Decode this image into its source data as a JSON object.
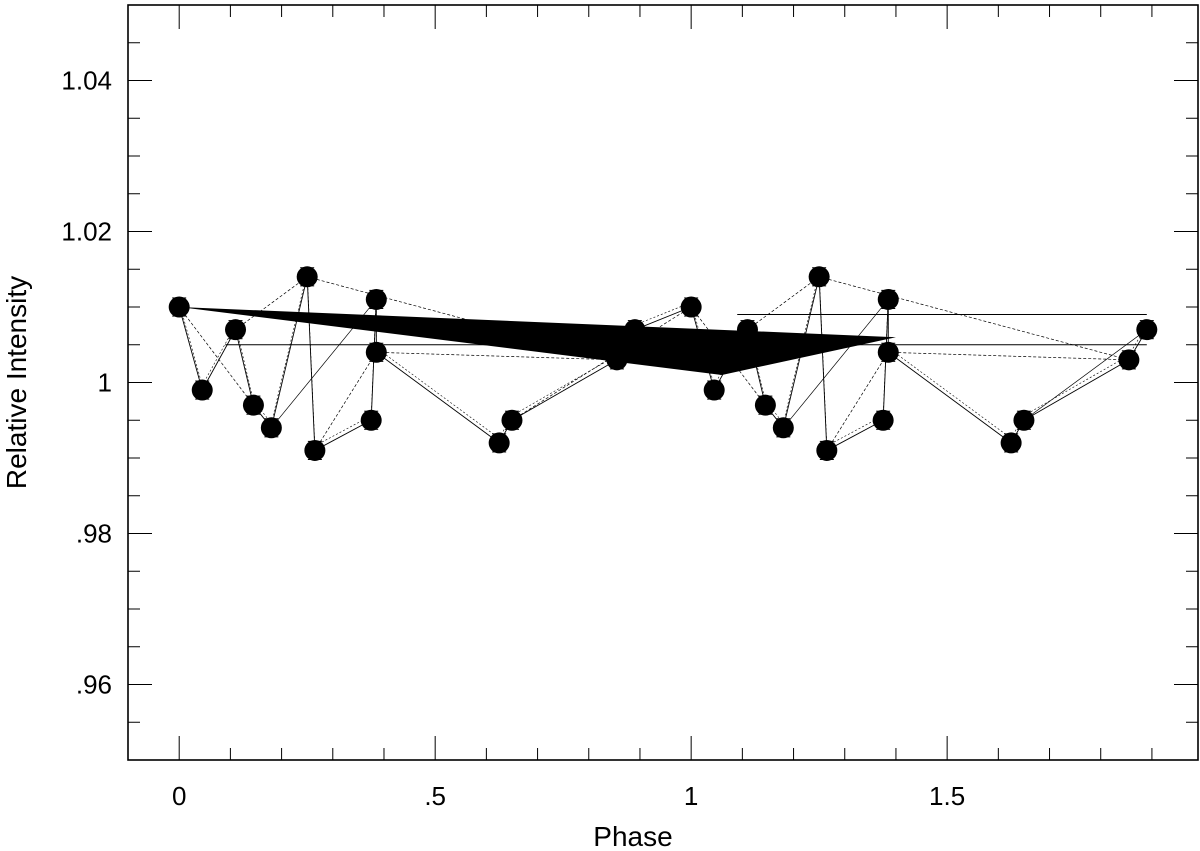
{
  "chart_data": {
    "type": "scatter",
    "title": "",
    "xlabel": "Phase",
    "ylabel": "Relative Intensity",
    "xlim": [
      -0.1,
      1.99
    ],
    "ylim": [
      0.95,
      1.05
    ],
    "x_ticks": [
      0,
      0.5,
      1,
      1.5
    ],
    "x_tick_labels": [
      "0",
      ".5",
      "1",
      "1.5"
    ],
    "y_ticks": [
      0.96,
      0.98,
      1.0,
      1.02,
      1.04
    ],
    "y_tick_labels": [
      ".96",
      ".98",
      "1",
      "1.02",
      "1.04"
    ],
    "grid": false,
    "error_bar": 0.0012,
    "points": [
      {
        "x": 0.0,
        "y": 1.01
      },
      {
        "x": 0.045,
        "y": 0.999
      },
      {
        "x": 0.11,
        "y": 1.007
      },
      {
        "x": 0.145,
        "y": 0.997
      },
      {
        "x": 0.18,
        "y": 0.994
      },
      {
        "x": 0.25,
        "y": 1.014
      },
      {
        "x": 0.265,
        "y": 0.991
      },
      {
        "x": 0.375,
        "y": 0.995
      },
      {
        "x": 0.385,
        "y": 1.011
      },
      {
        "x": 0.385,
        "y": 1.004
      },
      {
        "x": 0.625,
        "y": 0.992
      },
      {
        "x": 0.65,
        "y": 0.995
      },
      {
        "x": 0.855,
        "y": 1.003
      },
      {
        "x": 0.89,
        "y": 1.007
      },
      {
        "x": 1.0,
        "y": 1.01
      },
      {
        "x": 1.045,
        "y": 0.999
      },
      {
        "x": 1.11,
        "y": 1.007
      },
      {
        "x": 1.145,
        "y": 0.997
      },
      {
        "x": 1.18,
        "y": 0.994
      },
      {
        "x": 1.25,
        "y": 1.014
      },
      {
        "x": 1.265,
        "y": 0.991
      },
      {
        "x": 1.375,
        "y": 0.995
      },
      {
        "x": 1.385,
        "y": 1.011
      },
      {
        "x": 1.385,
        "y": 1.004
      },
      {
        "x": 1.625,
        "y": 0.992
      },
      {
        "x": 1.65,
        "y": 0.995
      },
      {
        "x": 1.855,
        "y": 1.003
      },
      {
        "x": 1.89,
        "y": 1.007
      }
    ],
    "wedge": [
      {
        "x": 0.0,
        "y": 1.01
      },
      {
        "x": 1.4,
        "y": 1.006
      },
      {
        "x": 1.06,
        "y": 1.001
      }
    ],
    "horizontal_lines": [
      {
        "x1": 0.09,
        "x2": 1.89,
        "y": 1.005
      },
      {
        "x1": 1.09,
        "x2": 1.89,
        "y": 1.009
      }
    ],
    "marker_color": "#000000",
    "line_color": "#000000"
  }
}
